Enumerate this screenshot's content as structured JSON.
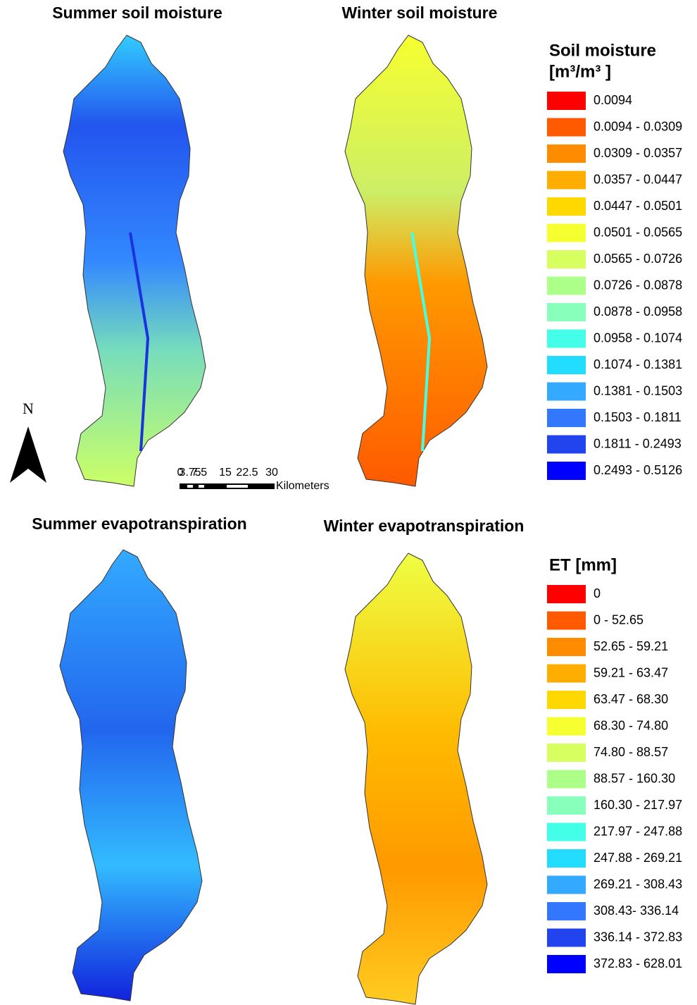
{
  "panels": [
    {
      "title": "Summer soil moisture"
    },
    {
      "title": "Winter soil moisture"
    },
    {
      "title": "Summer evapotranspiration"
    },
    {
      "title": "Winter evapotranspiration"
    }
  ],
  "north_label": "N",
  "scale_bar": {
    "labels": [
      "0",
      "3.75",
      "7.5",
      "15",
      "22.5",
      "30"
    ],
    "unit": "Kilometers"
  },
  "legends": [
    {
      "title": "Soil moisture",
      "subtitle": "[m³/m³ ]",
      "items": [
        {
          "label": "0.0094",
          "color": "#ff0000"
        },
        {
          "label": "0.0094 - 0.0309",
          "color": "#ff5a00"
        },
        {
          "label": "0.0309 - 0.0357",
          "color": "#ff8c00"
        },
        {
          "label": "0.0357 - 0.0447",
          "color": "#ffae00"
        },
        {
          "label": "0.0447 - 0.0501",
          "color": "#ffd800"
        },
        {
          "label": "0.0501 - 0.0565",
          "color": "#f6ff30"
        },
        {
          "label": "0.0565 - 0.0726",
          "color": "#d8ff60"
        },
        {
          "label": "0.0726 - 0.0878",
          "color": "#acff88"
        },
        {
          "label": "0.0878 - 0.0958",
          "color": "#88ffbb"
        },
        {
          "label": "0.0958 - 0.1074",
          "color": "#44ffe8"
        },
        {
          "label": "0.1074 - 0.1381",
          "color": "#22ddff"
        },
        {
          "label": "0.1381 - 0.1503",
          "color": "#33aaff"
        },
        {
          "label": "0.1503 - 0.1811",
          "color": "#3377ff"
        },
        {
          "label": "0.1811 - 0.2493",
          "color": "#2244ee"
        },
        {
          "label": "0.2493 - 0.5126",
          "color": "#0000ff"
        }
      ]
    },
    {
      "title": "ET [mm]",
      "items": [
        {
          "label": "0",
          "color": "#ff0000"
        },
        {
          "label": "0 - 52.65",
          "color": "#ff5a00"
        },
        {
          "label": "52.65 - 59.21",
          "color": "#ff8c00"
        },
        {
          "label": "59.21 - 63.47",
          "color": "#ffae00"
        },
        {
          "label": "63.47 - 68.30",
          "color": "#ffd800"
        },
        {
          "label": "68.30 - 74.80",
          "color": "#f6ff30"
        },
        {
          "label": "74.80 - 88.57",
          "color": "#d8ff60"
        },
        {
          "label": "88.57 - 160.30",
          "color": "#acff88"
        },
        {
          "label": "160.30 - 217.97",
          "color": "#88ffbb"
        },
        {
          "label": "217.97 - 247.88",
          "color": "#44ffe8"
        },
        {
          "label": "247.88 - 269.21",
          "color": "#22ddff"
        },
        {
          "label": "269.21 - 308.43",
          "color": "#33aaff"
        },
        {
          "label": "308.43- 336.14",
          "color": "#3377ff"
        },
        {
          "label": "336.14 - 372.83",
          "color": "#2244ee"
        },
        {
          "label": "372.83 - 628.01",
          "color": "#0000ff"
        }
      ]
    }
  ]
}
